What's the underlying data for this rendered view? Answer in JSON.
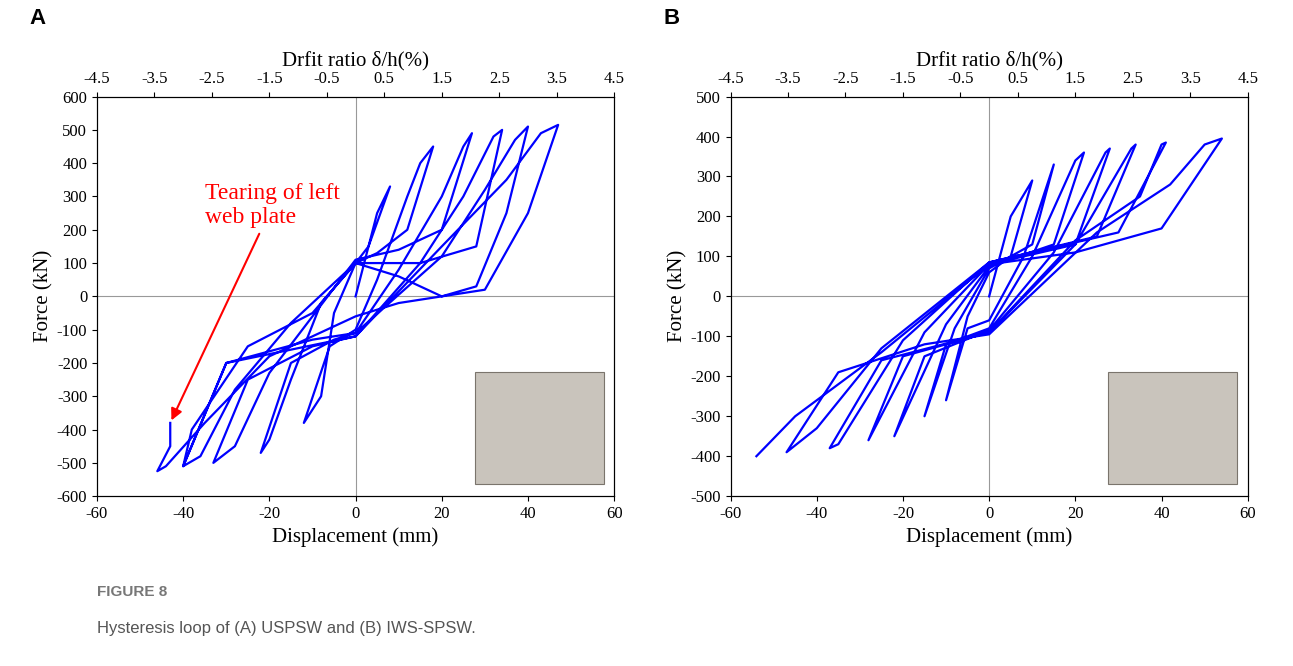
{
  "figure": {
    "label": "FIGURE 8",
    "caption": "Hysteresis loop of (A) USPSW and (B) IWS-SPSW."
  },
  "chart_data": [
    {
      "type": "line",
      "panel": "A",
      "xlabel": "Displacement (mm)",
      "ylabel": "Force (kN)",
      "x2label": "Drfit ratio δ/h(%)",
      "xlim": [
        -60,
        60
      ],
      "xticks": [
        -60,
        -40,
        -20,
        0,
        20,
        40,
        60
      ],
      "ylim": [
        -600,
        600
      ],
      "yticks": [
        -600,
        -500,
        -400,
        -300,
        -200,
        -100,
        0,
        100,
        200,
        300,
        400,
        500,
        600
      ],
      "x2lim": [
        -4.5,
        4.5
      ],
      "x2ticks": [
        -4.5,
        -3.5,
        -2.5,
        -1.5,
        -0.5,
        0.5,
        1.5,
        2.5,
        3.5,
        4.5
      ],
      "grid": false,
      "color": "#0000ff",
      "line_style": "solid",
      "x": [
        0,
        5,
        8,
        3,
        0,
        -5,
        -8,
        -12,
        -6,
        0,
        5,
        12,
        15,
        18,
        12,
        5,
        0,
        -8,
        -15,
        -20,
        -22,
        -15,
        -5,
        0,
        10,
        20,
        25,
        27,
        20,
        10,
        0,
        -10,
        -20,
        -28,
        -33,
        -25,
        -10,
        0,
        15,
        25,
        32,
        34,
        28,
        15,
        0,
        -15,
        -28,
        -36,
        -40,
        -30,
        -10,
        0,
        20,
        30,
        37,
        40,
        35,
        28,
        20,
        10,
        0,
        -10,
        -25,
        -38,
        -40,
        -30,
        -15,
        0,
        20,
        35,
        43,
        47,
        40,
        30,
        10,
        0,
        -20,
        -35,
        -44,
        -46,
        -43,
        -43
      ],
      "values": [
        0,
        250,
        330,
        150,
        100,
        -50,
        -300,
        -380,
        -150,
        -100,
        50,
        300,
        400,
        450,
        200,
        130,
        100,
        -20,
        -250,
        -430,
        -470,
        -200,
        -130,
        -110,
        80,
        300,
        450,
        490,
        200,
        140,
        110,
        -60,
        -230,
        -450,
        -500,
        -250,
        -150,
        -120,
        100,
        300,
        480,
        500,
        150,
        100,
        100,
        -80,
        -280,
        -480,
        -510,
        -200,
        -130,
        -110,
        120,
        320,
        470,
        510,
        250,
        30,
        0,
        60,
        100,
        -50,
        -150,
        -400,
        -510,
        -200,
        -160,
        -120,
        150,
        350,
        490,
        515,
        250,
        20,
        -20,
        -60,
        -180,
        -380,
        -510,
        -525,
        -450,
        -380
      ],
      "annotations": [
        {
          "text": "Tearing of left\nweb plate",
          "x": -43,
          "y": -380,
          "color": "#ff0000"
        }
      ]
    },
    {
      "type": "line",
      "panel": "B",
      "xlabel": "Displacement (mm)",
      "ylabel": "Force (kN)",
      "x2label": "Drfit ratio δ/h(%)",
      "xlim": [
        -60,
        60
      ],
      "xticks": [
        -60,
        -40,
        -20,
        0,
        20,
        40,
        60
      ],
      "ylim": [
        -500,
        500
      ],
      "yticks": [
        -500,
        -400,
        -300,
        -200,
        -100,
        0,
        100,
        200,
        300,
        400,
        500
      ],
      "x2lim": [
        -4.5,
        4.5
      ],
      "x2ticks": [
        -4.5,
        -3.5,
        -2.5,
        -1.5,
        -0.5,
        0.5,
        1.5,
        2.5,
        3.5,
        4.5
      ],
      "grid": false,
      "color": "#0000ff",
      "line_style": "solid",
      "x": [
        0,
        5,
        10,
        5,
        0,
        -5,
        -10,
        -5,
        0,
        8,
        15,
        10,
        0,
        -8,
        -15,
        -10,
        0,
        10,
        20,
        22,
        15,
        0,
        -10,
        -22,
        -15,
        0,
        15,
        27,
        28,
        20,
        0,
        -15,
        -28,
        -20,
        0,
        20,
        33,
        34,
        25,
        0,
        -20,
        -35,
        -37,
        -25,
        0,
        20,
        35,
        40,
        41,
        30,
        0,
        -25,
        -40,
        -47,
        -35,
        -15,
        0,
        25,
        42,
        50,
        54,
        40,
        20,
        0,
        -25,
        -45,
        -54
      ],
      "values": [
        0,
        200,
        290,
        100,
        60,
        -50,
        -260,
        -80,
        -60,
        100,
        330,
        130,
        70,
        -80,
        -300,
        -120,
        -80,
        100,
        340,
        360,
        130,
        75,
        -70,
        -350,
        -150,
        -85,
        110,
        360,
        370,
        130,
        80,
        -90,
        -360,
        -150,
        -90,
        130,
        370,
        380,
        150,
        85,
        -110,
        -370,
        -380,
        -160,
        -90,
        140,
        250,
        380,
        385,
        160,
        85,
        -130,
        -330,
        -390,
        -190,
        -120,
        -95,
        160,
        280,
        380,
        395,
        170,
        110,
        80,
        -140,
        -300,
        -400
      ]
    }
  ]
}
